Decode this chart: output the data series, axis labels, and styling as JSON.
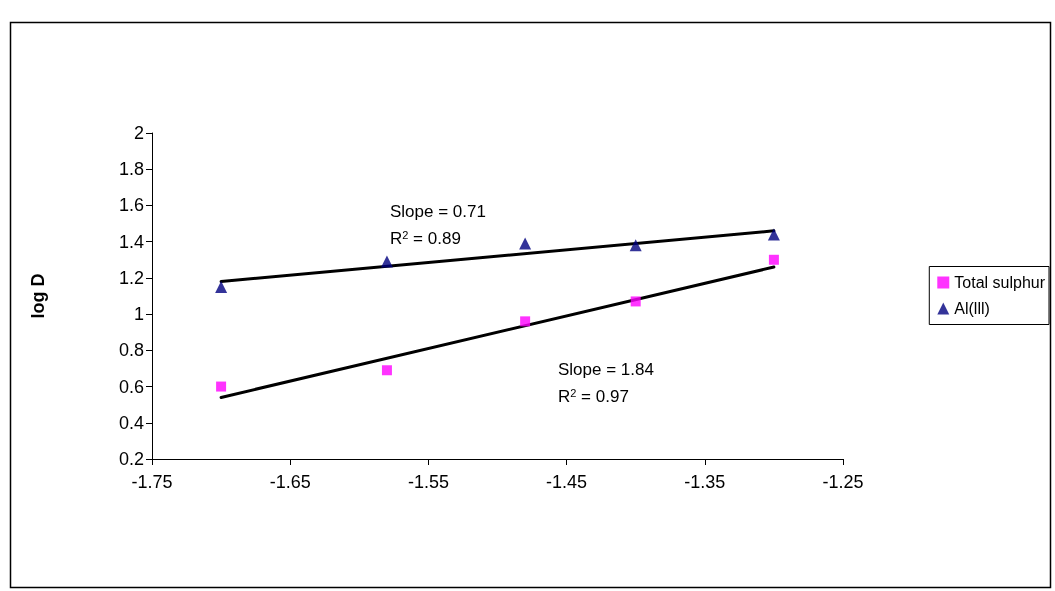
{
  "chart_data": {
    "type": "scatter",
    "ylabel": "log D",
    "xlim": [
      -1.75,
      -1.25
    ],
    "xticks": [
      -1.75,
      -1.65,
      -1.55,
      -1.45,
      -1.35,
      -1.25
    ],
    "ylim": [
      0.2,
      2
    ],
    "yticks": [
      0.2,
      0.4,
      0.6,
      0.8,
      1,
      1.2,
      1.4,
      1.6,
      1.8,
      2
    ],
    "grid": false,
    "legend": "right",
    "series": [
      {
        "name": "Total sulphur",
        "color": "#ff00ff",
        "marker": "square",
        "x": [
          -1.7,
          -1.58,
          -1.48,
          -1.4,
          -1.3
        ],
        "values": [
          0.6,
          0.69,
          0.96,
          1.07,
          1.3
        ]
      },
      {
        "name": "Al(lll)",
        "color": "#000080",
        "marker": "triangle",
        "x": [
          -1.7,
          -1.58,
          -1.48,
          -1.4,
          -1.3
        ],
        "values": [
          1.15,
          1.29,
          1.39,
          1.38,
          1.44
        ]
      },
      {
        "type": "line",
        "color": "#000000",
        "marker": "none",
        "x": [
          -1.7,
          -1.3
        ],
        "values": [
          1.18,
          1.46
        ]
      },
      {
        "type": "line",
        "color": "#000000",
        "marker": "none",
        "x": [
          -1.7,
          -1.3
        ],
        "values": [
          0.54,
          1.26
        ]
      }
    ],
    "annotations": [
      "Slope = 0.71",
      "R$^{2}$ = 0.89",
      "Slope = 1.84",
      "R$^{2}$ = 0.97"
    ]
  }
}
